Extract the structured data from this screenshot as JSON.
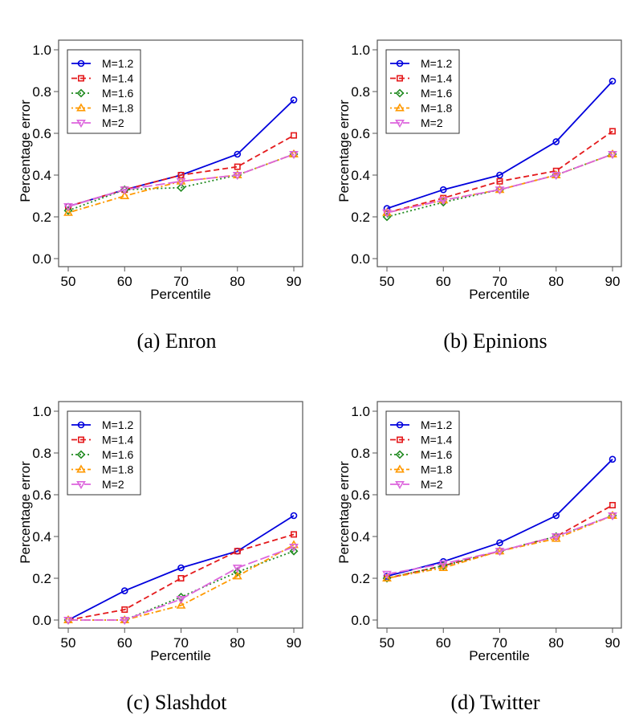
{
  "chart_data": [
    {
      "type": "line",
      "caption": "(a) Enron",
      "xlabel": "Percentile",
      "ylabel": "Percentage error",
      "x": [
        50,
        60,
        70,
        80,
        90
      ],
      "ylim": [
        0,
        1
      ],
      "yticks": [
        "0.0",
        "0.2",
        "0.4",
        "0.6",
        "0.8",
        "1.0"
      ],
      "legend_position": "top-left",
      "series": [
        {
          "name": "M=1.2",
          "values": [
            0.25,
            0.33,
            0.4,
            0.5,
            0.76
          ]
        },
        {
          "name": "M=1.4",
          "values": [
            0.25,
            0.33,
            0.4,
            0.44,
            0.59
          ]
        },
        {
          "name": "M=1.6",
          "values": [
            0.23,
            0.33,
            0.34,
            0.4,
            0.5
          ]
        },
        {
          "name": "M=1.8",
          "values": [
            0.22,
            0.3,
            0.37,
            0.4,
            0.5
          ]
        },
        {
          "name": "M=2",
          "values": [
            0.25,
            0.33,
            0.37,
            0.4,
            0.5
          ]
        }
      ]
    },
    {
      "type": "line",
      "caption": "(b) Epinions",
      "xlabel": "Percentile",
      "ylabel": "Percentage error",
      "x": [
        50,
        60,
        70,
        80,
        90
      ],
      "ylim": [
        0,
        1
      ],
      "yticks": [
        "0.0",
        "0.2",
        "0.4",
        "0.6",
        "0.8",
        "1.0"
      ],
      "legend_position": "top-left",
      "series": [
        {
          "name": "M=1.2",
          "values": [
            0.24,
            0.33,
            0.4,
            0.56,
            0.85
          ]
        },
        {
          "name": "M=1.4",
          "values": [
            0.22,
            0.29,
            0.37,
            0.42,
            0.61
          ]
        },
        {
          "name": "M=1.6",
          "values": [
            0.2,
            0.27,
            0.33,
            0.4,
            0.5
          ]
        },
        {
          "name": "M=1.8",
          "values": [
            0.22,
            0.28,
            0.33,
            0.4,
            0.5
          ]
        },
        {
          "name": "M=2",
          "values": [
            0.22,
            0.28,
            0.33,
            0.4,
            0.5
          ]
        }
      ]
    },
    {
      "type": "line",
      "caption": "(c) Slashdot",
      "xlabel": "Percentile",
      "ylabel": "Percentage error",
      "x": [
        50,
        60,
        70,
        80,
        90
      ],
      "ylim": [
        0,
        1
      ],
      "yticks": [
        "0.0",
        "0.2",
        "0.4",
        "0.6",
        "0.8",
        "1.0"
      ],
      "legend_position": "top-left",
      "series": [
        {
          "name": "M=1.2",
          "values": [
            0.0,
            0.14,
            0.25,
            0.33,
            0.5
          ]
        },
        {
          "name": "M=1.4",
          "values": [
            0.0,
            0.05,
            0.2,
            0.33,
            0.41
          ]
        },
        {
          "name": "M=1.6",
          "values": [
            0.0,
            0.0,
            0.11,
            0.23,
            0.33
          ]
        },
        {
          "name": "M=1.8",
          "values": [
            0.0,
            0.0,
            0.07,
            0.21,
            0.36
          ]
        },
        {
          "name": "M=2",
          "values": [
            0.0,
            0.0,
            0.1,
            0.25,
            0.35
          ]
        }
      ]
    },
    {
      "type": "line",
      "caption": "(d) Twitter",
      "xlabel": "Percentile",
      "ylabel": "Percentage error",
      "x": [
        50,
        60,
        70,
        80,
        90
      ],
      "ylim": [
        0,
        1
      ],
      "yticks": [
        "0.0",
        "0.2",
        "0.4",
        "0.6",
        "0.8",
        "1.0"
      ],
      "legend_position": "top-left",
      "series": [
        {
          "name": "M=1.2",
          "values": [
            0.21,
            0.28,
            0.37,
            0.5,
            0.77
          ]
        },
        {
          "name": "M=1.4",
          "values": [
            0.2,
            0.26,
            0.33,
            0.4,
            0.55
          ]
        },
        {
          "name": "M=1.6",
          "values": [
            0.2,
            0.26,
            0.33,
            0.4,
            0.5
          ]
        },
        {
          "name": "M=1.8",
          "values": [
            0.2,
            0.25,
            0.33,
            0.39,
            0.5
          ]
        },
        {
          "name": "M=2",
          "values": [
            0.22,
            0.27,
            0.33,
            0.4,
            0.5
          ]
        }
      ]
    }
  ],
  "series_styles": [
    {
      "color": "#0000dd",
      "marker": "circle",
      "line": "solid"
    },
    {
      "color": "#e41a1c",
      "marker": "square",
      "line": "dashed"
    },
    {
      "color": "#228b22",
      "marker": "diamond",
      "line": "dotted"
    },
    {
      "color": "#ff9900",
      "marker": "triangle-up",
      "line": "dot-dash"
    },
    {
      "color": "#dd66dd",
      "marker": "triangle-down",
      "line": "long-dash"
    }
  ]
}
